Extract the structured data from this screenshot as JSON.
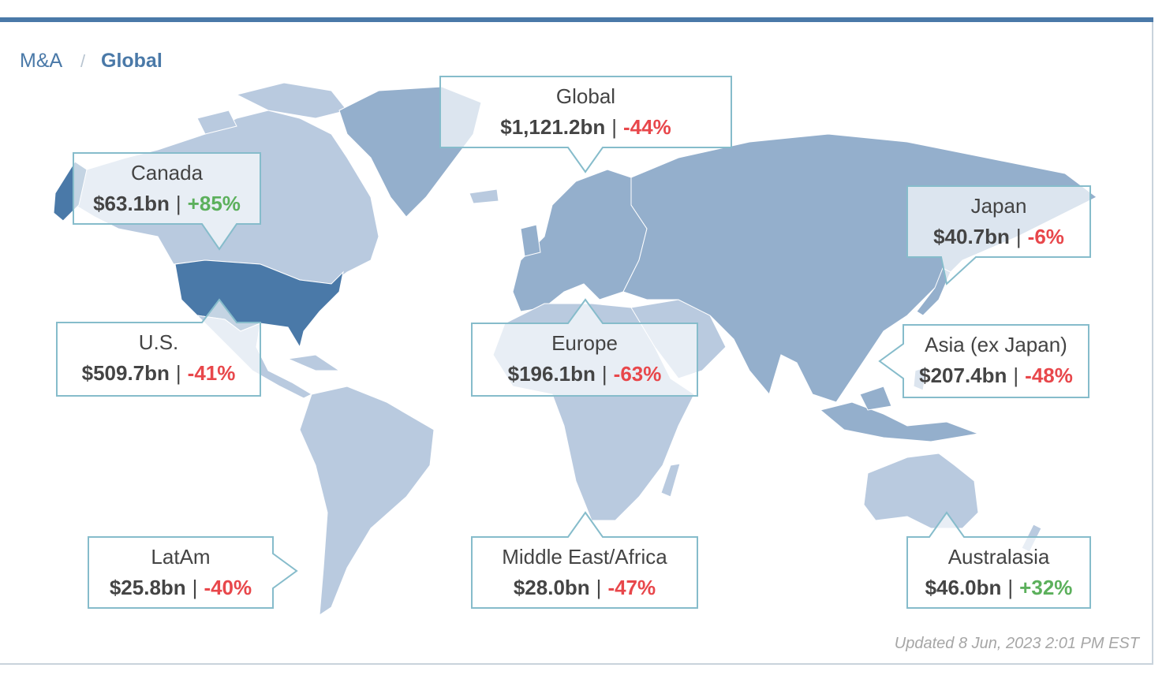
{
  "breadcrumb": {
    "parent": "M&A",
    "separator": "/",
    "current": "Global"
  },
  "value_separator": "|",
  "callouts": [
    {
      "region": "Global",
      "value": "$1,121.2bn",
      "change": "-44%",
      "color": "#e8474b"
    },
    {
      "region": "Canada",
      "value": "$63.1bn",
      "change": "+85%",
      "color": "#5cb05c"
    },
    {
      "region": "Japan",
      "value": "$40.7bn",
      "change": "-6%",
      "color": "#e8474b"
    },
    {
      "region": "U.S.",
      "value": "$509.7bn",
      "change": "-41%",
      "color": "#e8474b"
    },
    {
      "region": "Europe",
      "value": "$196.1bn",
      "change": "-63%",
      "color": "#e8474b"
    },
    {
      "region": "Asia (ex Japan)",
      "value": "$207.4bn",
      "change": "-48%",
      "color": "#e8474b"
    },
    {
      "region": "LatAm",
      "value": "$25.8bn",
      "change": "-40%",
      "color": "#e8474b"
    },
    {
      "region": "Middle East/Africa",
      "value": "$28.0bn",
      "change": "-47%",
      "color": "#e8474b"
    },
    {
      "region": "Australasia",
      "value": "$46.0bn",
      "change": "+32%",
      "color": "#5cb05c"
    }
  ],
  "updated": "Updated 8 Jun, 2023 2:01 PM EST"
}
